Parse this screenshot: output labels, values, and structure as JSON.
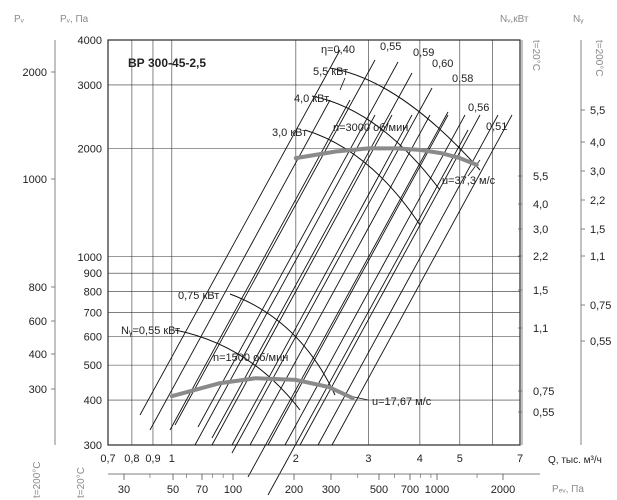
{
  "chart_data": {
    "type": "line",
    "title": "ВР 300-45-2,5",
    "axes": {
      "left_outer_label": "Pᵥ",
      "left_outer_ticks": [
        "2000",
        "1000",
        "800",
        "600",
        "400",
        "300"
      ],
      "left_main_label": "Pᵥ, Па",
      "left_main_ticks": [
        "4000",
        "3000",
        "2000",
        "1000",
        "900",
        "800",
        "700",
        "600",
        "500",
        "400",
        "300"
      ],
      "right_inner_label": "Nᵥ,кВт",
      "right_inner_ticks": [
        "5,5",
        "4,0",
        "3,0",
        "2,2",
        "1,5",
        "1,1",
        "0,75",
        "0,55"
      ],
      "right_outer_label": "Nᵧ",
      "right_outer_ticks": [
        "5,5",
        "4,0",
        "3,0",
        "2,2",
        "1,5",
        "1,1",
        "0,75",
        "0,55"
      ],
      "x_label": "Q, тыс. м³/ч",
      "x_ticks": [
        "0,7",
        "0,8",
        "0,9",
        "1",
        "2",
        "3",
        "4",
        "5",
        "7"
      ],
      "bottom_label": "Pₑᵥ, Па",
      "bottom_ticks": [
        "30",
        "50",
        "70",
        "100",
        "200",
        "300",
        "500",
        "700",
        "1000",
        "2000"
      ],
      "temp_left_bottom": "t=200°C",
      "temp_left_bottom2": "t=20°C",
      "temp_right_inner": "t=20°C",
      "temp_right_outer": "t=200°C",
      "x_log": true,
      "y_log": true,
      "x_range": [
        0.7,
        7
      ],
      "y_range": [
        300,
        4000
      ]
    },
    "series": [
      {
        "name": "n=3000 об/мин",
        "x": [
          2.0,
          2.5,
          3.0,
          3.5,
          4.0,
          4.5,
          5.0,
          5.5
        ],
        "y": [
          1880,
          1960,
          2000,
          2000,
          1980,
          1940,
          1880,
          1800
        ]
      },
      {
        "name": "n=1500 об/мин",
        "x": [
          1.0,
          1.3,
          1.6,
          2.0,
          2.4,
          2.75
        ],
        "y": [
          410,
          445,
          460,
          455,
          435,
          405
        ]
      }
    ],
    "efficiency_labels": [
      "η=0,40",
      "0,55",
      "0,59",
      "0,60",
      "0,58",
      "0,56",
      "0,51"
    ],
    "power_labels": [
      "5,5 кВт",
      "4,0 кВт",
      "3,0 кВт",
      "0,75 кВт",
      "Nᵧ=0,55 кВт"
    ],
    "speed_labels": [
      "u=37,3 м/с",
      "u=17,67 м/с"
    ]
  }
}
